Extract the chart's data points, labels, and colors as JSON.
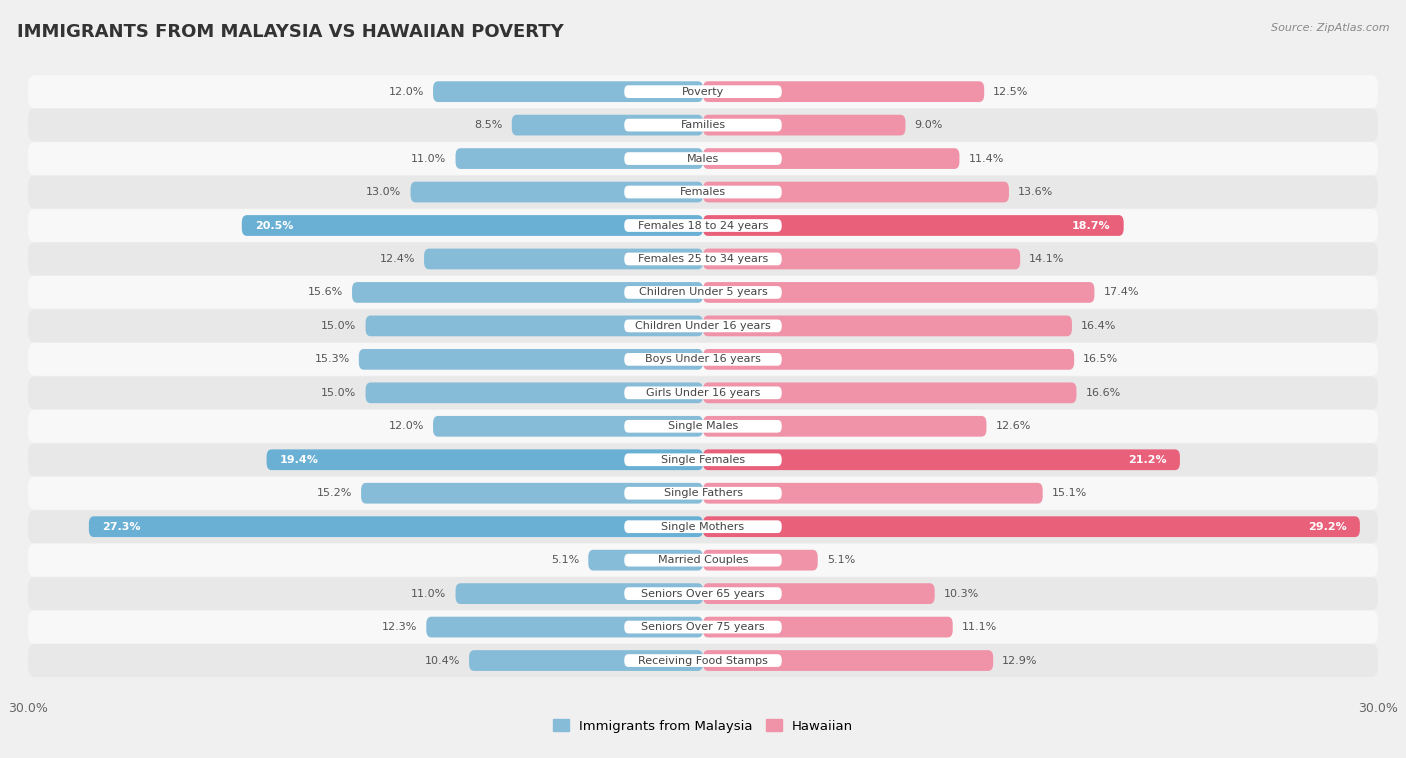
{
  "title": "IMMIGRANTS FROM MALAYSIA VS HAWAIIAN POVERTY",
  "source": "Source: ZipAtlas.com",
  "categories": [
    "Poverty",
    "Families",
    "Males",
    "Females",
    "Females 18 to 24 years",
    "Females 25 to 34 years",
    "Children Under 5 years",
    "Children Under 16 years",
    "Boys Under 16 years",
    "Girls Under 16 years",
    "Single Males",
    "Single Females",
    "Single Fathers",
    "Single Mothers",
    "Married Couples",
    "Seniors Over 65 years",
    "Seniors Over 75 years",
    "Receiving Food Stamps"
  ],
  "left_values": [
    12.0,
    8.5,
    11.0,
    13.0,
    20.5,
    12.4,
    15.6,
    15.0,
    15.3,
    15.0,
    12.0,
    19.4,
    15.2,
    27.3,
    5.1,
    11.0,
    12.3,
    10.4
  ],
  "right_values": [
    12.5,
    9.0,
    11.4,
    13.6,
    18.7,
    14.1,
    17.4,
    16.4,
    16.5,
    16.6,
    12.6,
    21.2,
    15.1,
    29.2,
    5.1,
    10.3,
    11.1,
    12.9
  ],
  "left_color": "#87bcd8",
  "right_color": "#f093a8",
  "left_highlight_color": "#6aafd4",
  "right_highlight_color": "#e8607a",
  "highlight_rows": [
    4,
    11,
    13
  ],
  "axis_max": 30.0,
  "left_label": "Immigrants from Malaysia",
  "right_label": "Hawaiian",
  "background_color": "#f0f0f0",
  "row_bg_even": "#f8f8f8",
  "row_bg_odd": "#e8e8e8",
  "title_fontsize": 13,
  "label_fontsize": 8.0,
  "value_fontsize": 8.0
}
